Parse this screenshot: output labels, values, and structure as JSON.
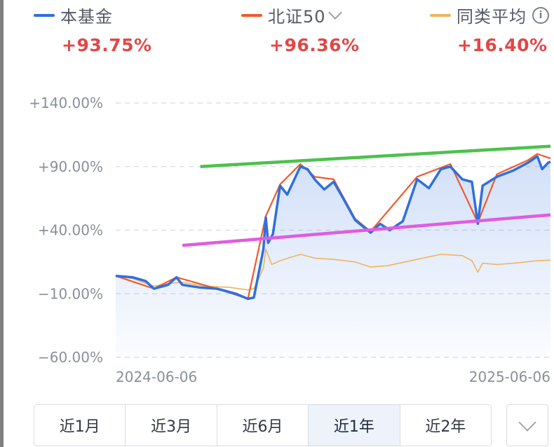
{
  "legend": [
    {
      "name": "本基金",
      "value": "+93.75%",
      "color": "#2f6fe0"
    },
    {
      "name": "北证50",
      "value": "+96.36%",
      "color": "#f05a2a",
      "has_dropdown": true
    },
    {
      "name": "同类平均",
      "value": "+16.40%",
      "color": "#f0b45c",
      "has_info": true
    }
  ],
  "info_glyph": "i",
  "chart_data": {
    "type": "line",
    "y_ticks": [
      "+140.00%",
      "+90.00%",
      "+40.00%",
      "−10.00%",
      "−60.00%"
    ],
    "y_tick_values": [
      140,
      90,
      40,
      -10,
      -60
    ],
    "x_ticks": [
      "2024-06-06",
      "2025-06-06"
    ],
    "x_range": [
      "2024-06-06",
      "2025-06-06"
    ],
    "ylim": [
      -60,
      140
    ],
    "grid": true,
    "series": [
      {
        "name": "本基金",
        "color": "#2f6fe0",
        "points": [
          [
            "2024-06-06",
            4
          ],
          [
            "2024-06-20",
            3
          ],
          [
            "2024-07-01",
            0
          ],
          [
            "2024-07-08",
            -6
          ],
          [
            "2024-07-20",
            -3
          ],
          [
            "2024-07-27",
            3
          ],
          [
            "2024-08-01",
            -3
          ],
          [
            "2024-08-15",
            -5
          ],
          [
            "2024-08-30",
            -6
          ],
          [
            "2024-09-15",
            -10
          ],
          [
            "2024-09-25",
            -14
          ],
          [
            "2024-09-30",
            -13
          ],
          [
            "2024-10-08",
            25
          ],
          [
            "2024-10-10",
            50
          ],
          [
            "2024-10-12",
            30
          ],
          [
            "2024-10-16",
            37
          ],
          [
            "2024-10-22",
            75
          ],
          [
            "2024-10-28",
            68
          ],
          [
            "2024-11-03",
            80
          ],
          [
            "2024-11-08",
            90
          ],
          [
            "2024-11-14",
            88
          ],
          [
            "2024-11-20",
            80
          ],
          [
            "2024-11-28",
            72
          ],
          [
            "2024-12-06",
            78
          ],
          [
            "2024-12-14",
            65
          ],
          [
            "2024-12-24",
            48
          ],
          [
            "2025-01-06",
            38
          ],
          [
            "2025-01-14",
            45
          ],
          [
            "2025-01-22",
            40
          ],
          [
            "2025-02-02",
            47
          ],
          [
            "2025-02-14",
            80
          ],
          [
            "2025-02-24",
            73
          ],
          [
            "2025-03-06",
            88
          ],
          [
            "2025-03-14",
            90
          ],
          [
            "2025-03-24",
            80
          ],
          [
            "2025-04-01",
            78
          ],
          [
            "2025-04-06",
            45
          ],
          [
            "2025-04-10",
            75
          ],
          [
            "2025-04-22",
            82
          ],
          [
            "2025-05-06",
            87
          ],
          [
            "2025-05-18",
            93
          ],
          [
            "2025-05-26",
            98
          ],
          [
            "2025-05-30",
            88
          ],
          [
            "2025-06-04",
            93
          ],
          [
            "2025-06-06",
            93.75
          ]
        ]
      },
      {
        "name": "北证50",
        "color": "#f05a2a",
        "points": [
          [
            "2024-06-06",
            4
          ],
          [
            "2024-07-08",
            -6
          ],
          [
            "2024-07-27",
            3
          ],
          [
            "2024-08-30",
            -6
          ],
          [
            "2024-09-25",
            -14
          ],
          [
            "2024-10-10",
            51
          ],
          [
            "2024-10-22",
            76
          ],
          [
            "2024-11-08",
            92
          ],
          [
            "2024-11-20",
            82
          ],
          [
            "2024-12-06",
            80
          ],
          [
            "2024-12-24",
            49
          ],
          [
            "2025-01-06",
            39
          ],
          [
            "2025-02-14",
            82
          ],
          [
            "2025-03-14",
            92
          ],
          [
            "2025-04-06",
            46
          ],
          [
            "2025-04-22",
            84
          ],
          [
            "2025-05-18",
            95
          ],
          [
            "2025-05-26",
            100
          ],
          [
            "2025-06-06",
            96.36
          ]
        ]
      },
      {
        "name": "同类平均",
        "color": "#f0b45c",
        "points": [
          [
            "2024-06-06",
            4
          ],
          [
            "2024-06-20",
            2
          ],
          [
            "2024-07-08",
            -4
          ],
          [
            "2024-07-20",
            -2
          ],
          [
            "2024-08-01",
            -1
          ],
          [
            "2024-08-20",
            -4
          ],
          [
            "2024-09-10",
            -5
          ],
          [
            "2024-09-25",
            -7
          ],
          [
            "2024-09-30",
            -6
          ],
          [
            "2024-10-08",
            10
          ],
          [
            "2024-10-10",
            25
          ],
          [
            "2024-10-15",
            13
          ],
          [
            "2024-10-22",
            16
          ],
          [
            "2024-11-08",
            21
          ],
          [
            "2024-11-20",
            18
          ],
          [
            "2024-12-06",
            17
          ],
          [
            "2024-12-24",
            15
          ],
          [
            "2025-01-06",
            11
          ],
          [
            "2025-01-20",
            12
          ],
          [
            "2025-02-14",
            17
          ],
          [
            "2025-03-06",
            21
          ],
          [
            "2025-03-24",
            20
          ],
          [
            "2025-04-01",
            16
          ],
          [
            "2025-04-06",
            7
          ],
          [
            "2025-04-10",
            14
          ],
          [
            "2025-04-22",
            13
          ],
          [
            "2025-05-06",
            14
          ],
          [
            "2025-05-26",
            16
          ],
          [
            "2025-06-06",
            16.4
          ]
        ]
      }
    ]
  },
  "trend_lines": [
    {
      "color": "#4cc24c",
      "from": [
        "2024-08-16",
        90
      ],
      "to": [
        "2025-06-06",
        106
      ]
    },
    {
      "color": "#e05ce0",
      "from": [
        "2024-08-01",
        28
      ],
      "to": [
        "2025-06-06",
        52
      ]
    }
  ],
  "tabs": [
    {
      "label": "近1月",
      "active": false
    },
    {
      "label": "近3月",
      "active": false
    },
    {
      "label": "近6月",
      "active": false
    },
    {
      "label": "近1年",
      "active": true
    },
    {
      "label": "近2年",
      "active": false
    }
  ]
}
